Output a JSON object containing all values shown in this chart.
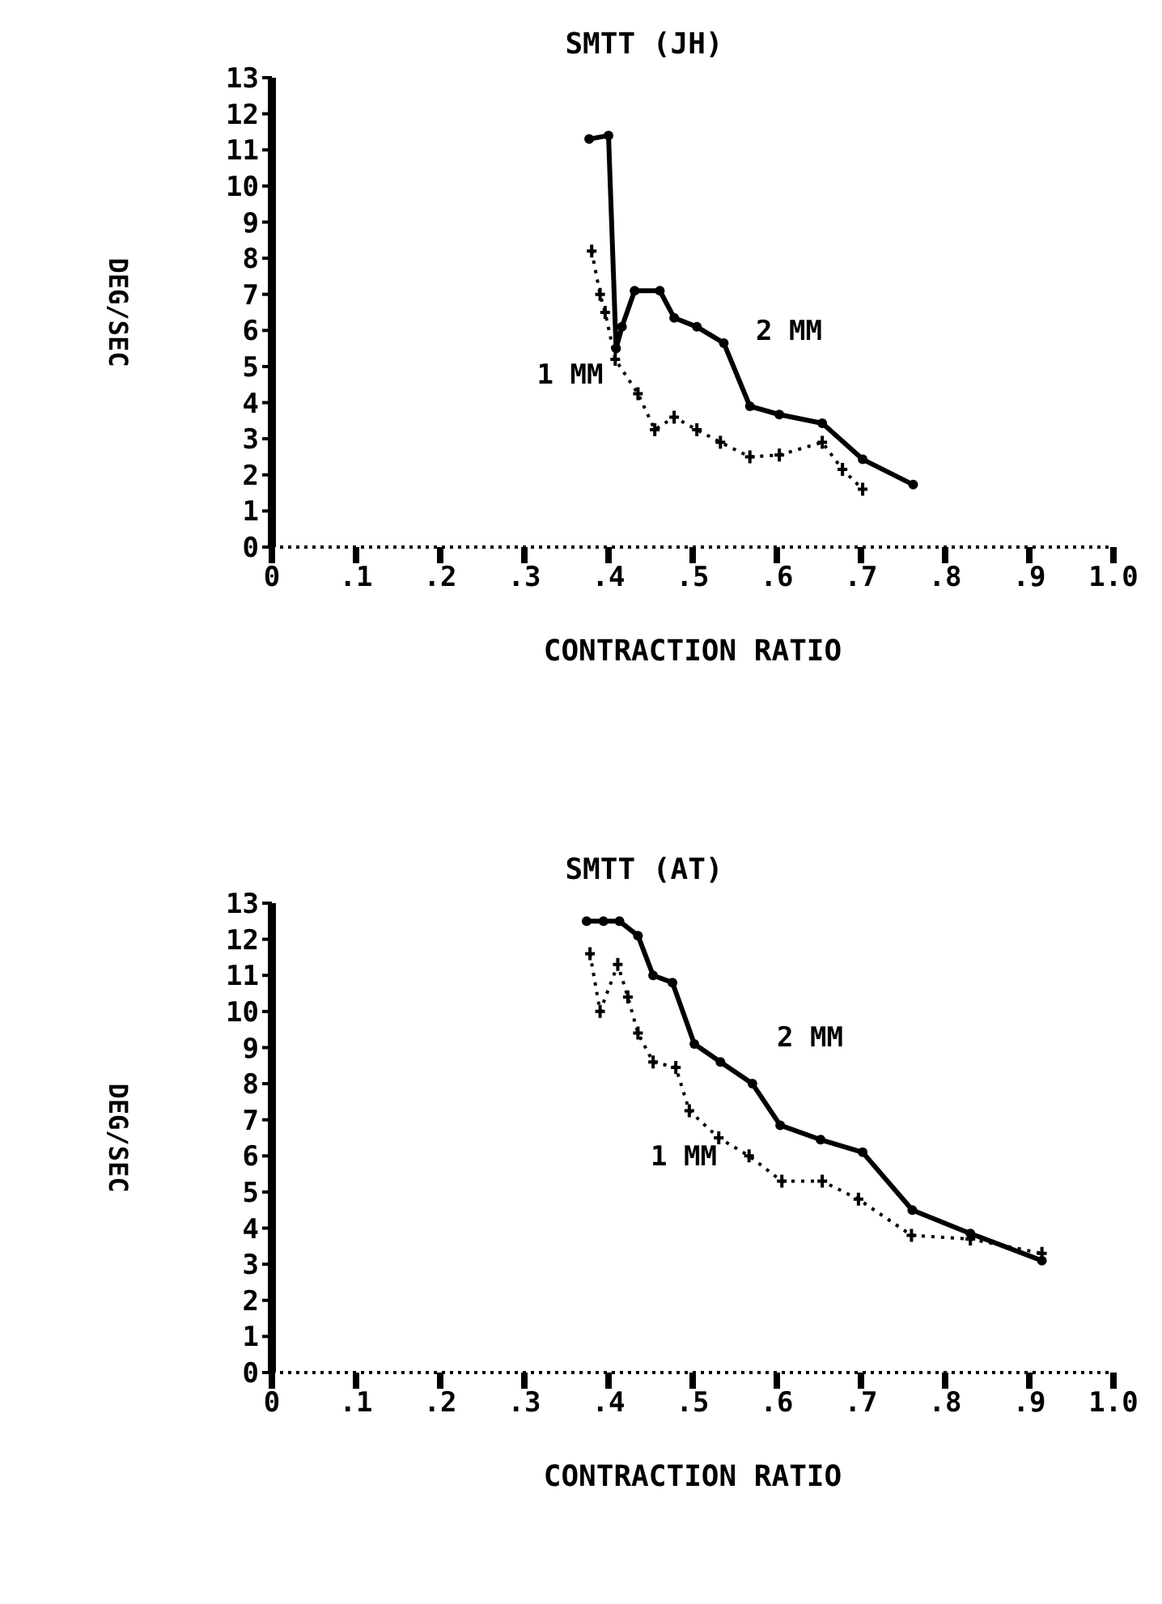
{
  "chart_data": [
    {
      "type": "line",
      "title": "SMTT (JH)",
      "xlabel": "CONTRACTION RATIO",
      "ylabel": "DEG/SEC",
      "xlim": [
        0,
        1.0
      ],
      "ylim": [
        0,
        13
      ],
      "xticks": [
        0,
        {
          "value": 0.1,
          "label": ".1"
        },
        {
          "value": 0.2,
          "label": ".2"
        },
        {
          "value": 0.3,
          "label": ".3"
        },
        {
          "value": 0.4,
          "label": ".4"
        },
        {
          "value": 0.5,
          "label": ".5"
        },
        {
          "value": 0.6,
          "label": ".6"
        },
        {
          "value": 0.7,
          "label": ".7"
        },
        {
          "value": 0.8,
          "label": ".8"
        },
        {
          "value": 0.9,
          "label": ".9"
        },
        {
          "value": 1.0,
          "label": "1.0"
        }
      ],
      "yticks": [
        0,
        1,
        2,
        3,
        4,
        5,
        6,
        7,
        8,
        9,
        10,
        11,
        12,
        13
      ],
      "grid": false,
      "legend": false,
      "series": [
        {
          "name": "2 MM",
          "color": "#000000",
          "marker": "circle",
          "line_style": "solid",
          "x": [
            0.377,
            0.4,
            0.409,
            0.416,
            0.431,
            0.461,
            0.478,
            0.505,
            0.537,
            0.568,
            0.603,
            0.654,
            0.702,
            0.762
          ],
          "values": [
            11.3,
            11.4,
            5.5,
            6.1,
            7.1,
            7.1,
            6.35,
            6.1,
            5.65,
            3.9,
            3.67,
            3.43,
            2.43,
            1.73
          ]
        },
        {
          "name": "1 MM",
          "color": "#000000",
          "marker": "cross",
          "line_style": "dotted",
          "x": [
            0.38,
            0.39,
            0.396,
            0.408,
            0.435,
            0.455,
            0.478,
            0.505,
            0.533,
            0.568,
            0.603,
            0.654,
            0.678,
            0.702
          ],
          "values": [
            8.2,
            7.0,
            6.5,
            5.2,
            4.25,
            3.25,
            3.6,
            3.25,
            2.9,
            2.5,
            2.55,
            2.9,
            2.15,
            1.6
          ]
        }
      ]
    },
    {
      "type": "line",
      "title": "SMTT (AT)",
      "xlabel": "CONTRACTION RATIO",
      "ylabel": "DEG/SEC",
      "xlim": [
        0,
        1.0
      ],
      "ylim": [
        0,
        13
      ],
      "xticks": [
        0,
        {
          "value": 0.1,
          "label": ".1"
        },
        {
          "value": 0.2,
          "label": ".2"
        },
        {
          "value": 0.3,
          "label": ".3"
        },
        {
          "value": 0.4,
          "label": ".4"
        },
        {
          "value": 0.5,
          "label": ".5"
        },
        {
          "value": 0.6,
          "label": ".6"
        },
        {
          "value": 0.7,
          "label": ".7"
        },
        {
          "value": 0.8,
          "label": ".8"
        },
        {
          "value": 0.9,
          "label": ".9"
        },
        {
          "value": 1.0,
          "label": "1.0"
        }
      ],
      "yticks": [
        0,
        1,
        2,
        3,
        4,
        5,
        6,
        7,
        8,
        9,
        10,
        11,
        12,
        13
      ],
      "grid": false,
      "legend": false,
      "series": [
        {
          "name": "2 MM",
          "color": "#000000",
          "marker": "circle",
          "line_style": "solid",
          "x": [
            0.374,
            0.394,
            0.413,
            0.435,
            0.453,
            0.476,
            0.502,
            0.533,
            0.571,
            0.604,
            0.652,
            0.702,
            0.761,
            0.83,
            0.915
          ],
          "values": [
            12.5,
            12.5,
            12.5,
            12.1,
            11.0,
            10.8,
            9.1,
            8.6,
            8.0,
            6.85,
            6.45,
            6.1,
            4.5,
            3.85,
            3.1
          ]
        },
        {
          "name": "1 MM",
          "color": "#000000",
          "marker": "cross",
          "line_style": "dotted",
          "x": [
            0.378,
            0.39,
            0.411,
            0.423,
            0.435,
            0.453,
            0.48,
            0.496,
            0.531,
            0.567,
            0.606,
            0.654,
            0.697,
            0.76,
            0.83,
            0.915
          ],
          "values": [
            11.6,
            10.0,
            11.3,
            10.4,
            9.4,
            8.6,
            8.45,
            7.25,
            6.5,
            6.0,
            5.3,
            5.3,
            4.8,
            3.8,
            3.7,
            3.3
          ]
        }
      ]
    }
  ]
}
